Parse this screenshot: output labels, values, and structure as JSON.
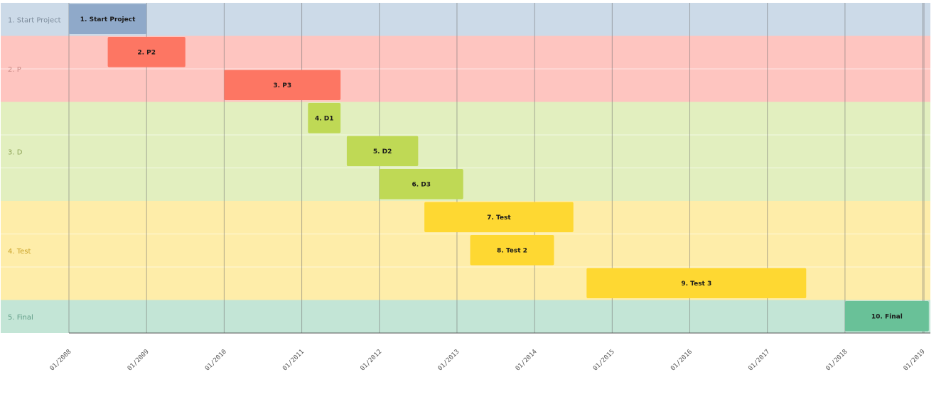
{
  "chart_data": {
    "type": "gantt",
    "x_unit": "year",
    "x_range": [
      2008.0,
      2019.1
    ],
    "tick_labels": [
      "01/2008",
      "01/2009",
      "01/2010",
      "01/2011",
      "01/2012",
      "01/2013",
      "01/2014",
      "01/2015",
      "01/2016",
      "01/2017",
      "01/2018",
      "01/2019"
    ],
    "tick_values": [
      2008,
      2009,
      2010,
      2011,
      2012,
      2013,
      2014,
      2015,
      2016,
      2017,
      2018,
      2019
    ],
    "lanes": [
      {
        "label": "1. Start Project",
        "rows": 1,
        "band_color": "#ccdae8",
        "label_color": "#7d8c9c",
        "bar_color": "#8fa9c9"
      },
      {
        "label": "2. P",
        "rows": 2,
        "band_color": "#fec5c0",
        "label_color": "#c98a86",
        "bar_color": "#fd7663"
      },
      {
        "label": "3. D",
        "rows": 3,
        "band_color": "#e2efbf",
        "label_color": "#8fa457",
        "bar_color": "#bfd955"
      },
      {
        "label": "4. Test",
        "rows": 3,
        "band_color": "#feeda9",
        "label_color": "#c9a227",
        "bar_color": "#fed832"
      },
      {
        "label": "5. Final",
        "rows": 1,
        "band_color": "#c3e5d6",
        "label_color": "#5f9c86",
        "bar_color": "#69c198"
      }
    ],
    "tasks": [
      {
        "label": "1. Start Project",
        "lane": 0,
        "row": 0,
        "start": 2008.0,
        "end": 2009.0
      },
      {
        "label": "2. P2",
        "lane": 1,
        "row": 0,
        "start": 2008.5,
        "end": 2009.5
      },
      {
        "label": "3. P3",
        "lane": 1,
        "row": 1,
        "start": 2010.0,
        "end": 2011.5
      },
      {
        "label": "4. D1",
        "lane": 2,
        "row": 0,
        "start": 2011.08,
        "end": 2011.5
      },
      {
        "label": "5. D2",
        "lane": 2,
        "row": 1,
        "start": 2011.58,
        "end": 2012.5
      },
      {
        "label": "6. D3",
        "lane": 2,
        "row": 2,
        "start": 2012.0,
        "end": 2013.08
      },
      {
        "label": "7. Test",
        "lane": 3,
        "row": 0,
        "start": 2012.58,
        "end": 2014.5
      },
      {
        "label": "8. Test 2",
        "lane": 3,
        "row": 1,
        "start": 2013.17,
        "end": 2014.25
      },
      {
        "label": "9. Test 3",
        "lane": 3,
        "row": 2,
        "start": 2014.67,
        "end": 2017.5
      },
      {
        "label": "10. Final",
        "lane": 4,
        "row": 0,
        "start": 2018.0,
        "end": 2019.08
      }
    ]
  }
}
